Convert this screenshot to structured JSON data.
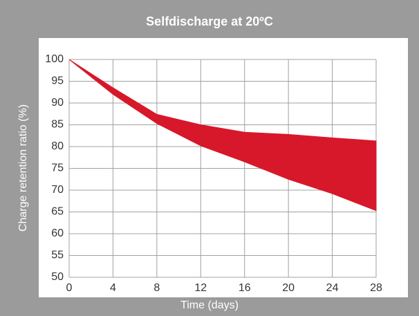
{
  "chart_data": {
    "type": "band",
    "title": "Selfdischarge at 20ºC",
    "xlabel": "Time (days)",
    "ylabel": "Charge retention ratio (%)",
    "x": [
      0,
      4,
      8,
      12,
      16,
      20,
      24,
      28
    ],
    "upper": [
      100,
      93.5,
      87.4,
      85,
      83.3,
      82.8,
      82,
      81.3
    ],
    "lower": [
      100,
      92,
      85.3,
      80.2,
      76.5,
      72.5,
      69.2,
      65.3
    ],
    "color": "#d7182a",
    "xlim": [
      0,
      28
    ],
    "xticks": [
      0,
      4,
      8,
      12,
      16,
      20,
      24,
      28
    ],
    "ylim": [
      50,
      100
    ],
    "yticks": [
      50,
      55,
      60,
      65,
      70,
      75,
      80,
      85,
      90,
      95,
      100
    ],
    "grid": true
  }
}
